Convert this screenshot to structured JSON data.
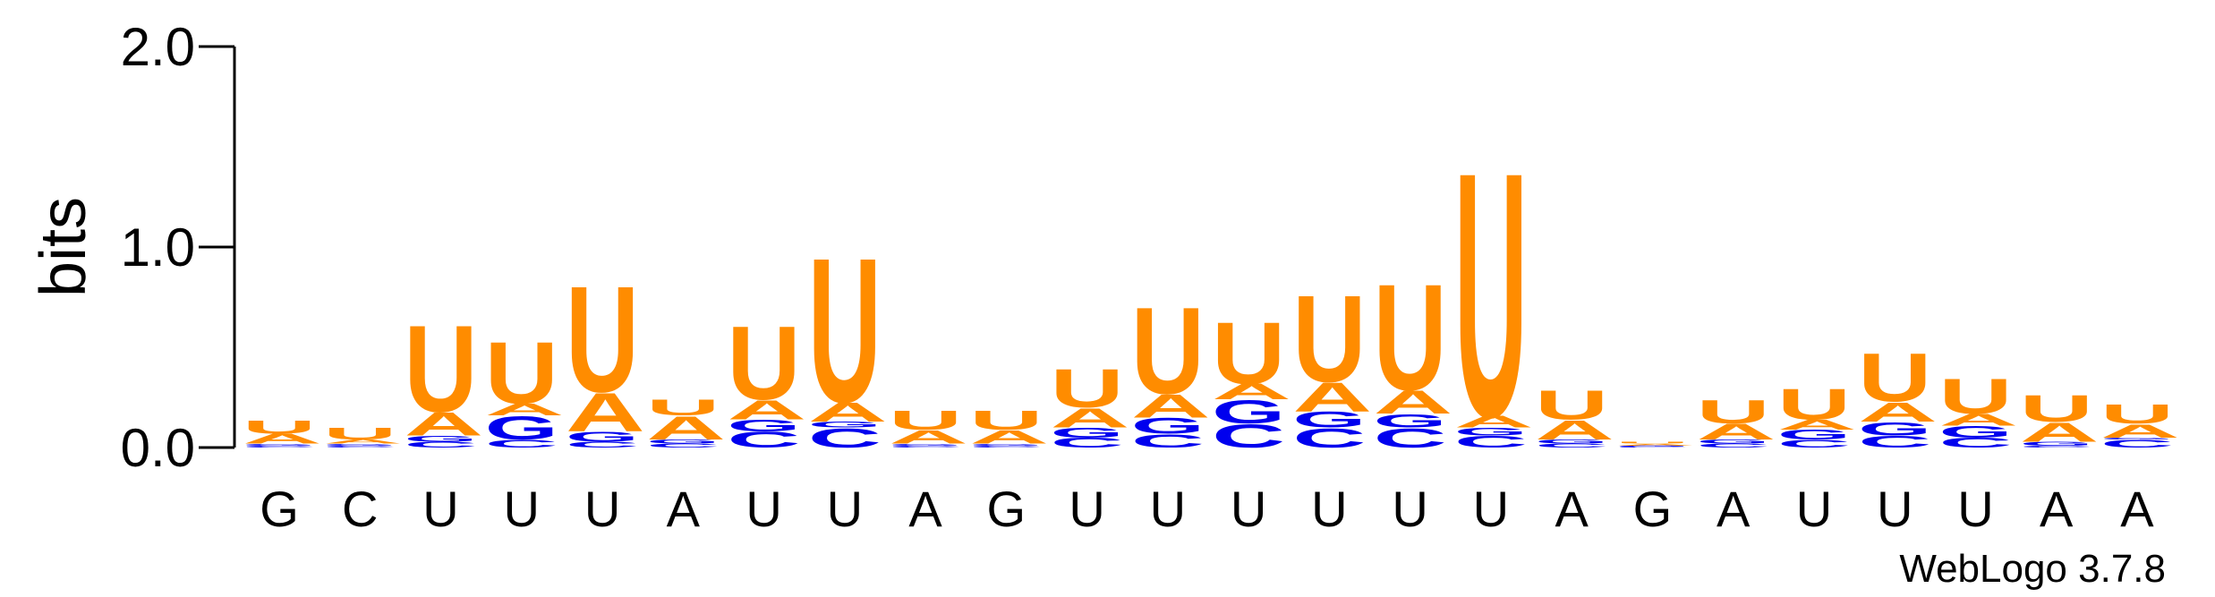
{
  "chart_data": {
    "type": "logo",
    "ylabel": "bits",
    "credit": "WebLogo 3.7.8",
    "categories": [
      "G",
      "C",
      "U",
      "U",
      "U",
      "A",
      "U",
      "U",
      "A",
      "G",
      "U",
      "U",
      "U",
      "U",
      "U",
      "U",
      "A",
      "G",
      "A",
      "U",
      "U",
      "U",
      "A",
      "A"
    ],
    "ylim": [
      0,
      2
    ],
    "yticks": [
      {
        "value": 0,
        "label": "0.0"
      },
      {
        "value": 1,
        "label": "1.0"
      },
      {
        "value": 2,
        "label": "2.0"
      }
    ],
    "series": [
      {
        "name": "C",
        "color": "#0000ee",
        "values": [
          0.01,
          0.01,
          0.03,
          0.04,
          0.03,
          0.02,
          0.08,
          0.1,
          0.01,
          0.01,
          0.05,
          0.07,
          0.12,
          0.1,
          0.1,
          0.06,
          0.02,
          0.005,
          0.02,
          0.04,
          0.06,
          0.05,
          0.01,
          0.04
        ]
      },
      {
        "name": "G",
        "color": "#0000ee",
        "values": [
          0.01,
          0.01,
          0.03,
          0.12,
          0.05,
          0.02,
          0.06,
          0.03,
          0.01,
          0.01,
          0.05,
          0.08,
          0.12,
          0.08,
          0.07,
          0.04,
          0.02,
          0.005,
          0.02,
          0.05,
          0.07,
          0.06,
          0.02,
          0.01
        ]
      },
      {
        "name": "A",
        "color": "#ff8c00",
        "values": [
          0.05,
          0.02,
          0.12,
          0.06,
          0.2,
          0.12,
          0.1,
          0.1,
          0.07,
          0.07,
          0.1,
          0.12,
          0.08,
          0.15,
          0.12,
          0.06,
          0.1,
          0.01,
          0.08,
          0.05,
          0.1,
          0.06,
          0.1,
          0.07
        ]
      },
      {
        "name": "U",
        "color": "#ff8c00",
        "values": [
          0.07,
          0.06,
          0.45,
          0.32,
          0.55,
          0.08,
          0.38,
          0.75,
          0.1,
          0.1,
          0.2,
          0.45,
          0.32,
          0.45,
          0.55,
          1.27,
          0.15,
          0.01,
          0.12,
          0.16,
          0.25,
          0.18,
          0.14,
          0.1
        ]
      }
    ]
  }
}
